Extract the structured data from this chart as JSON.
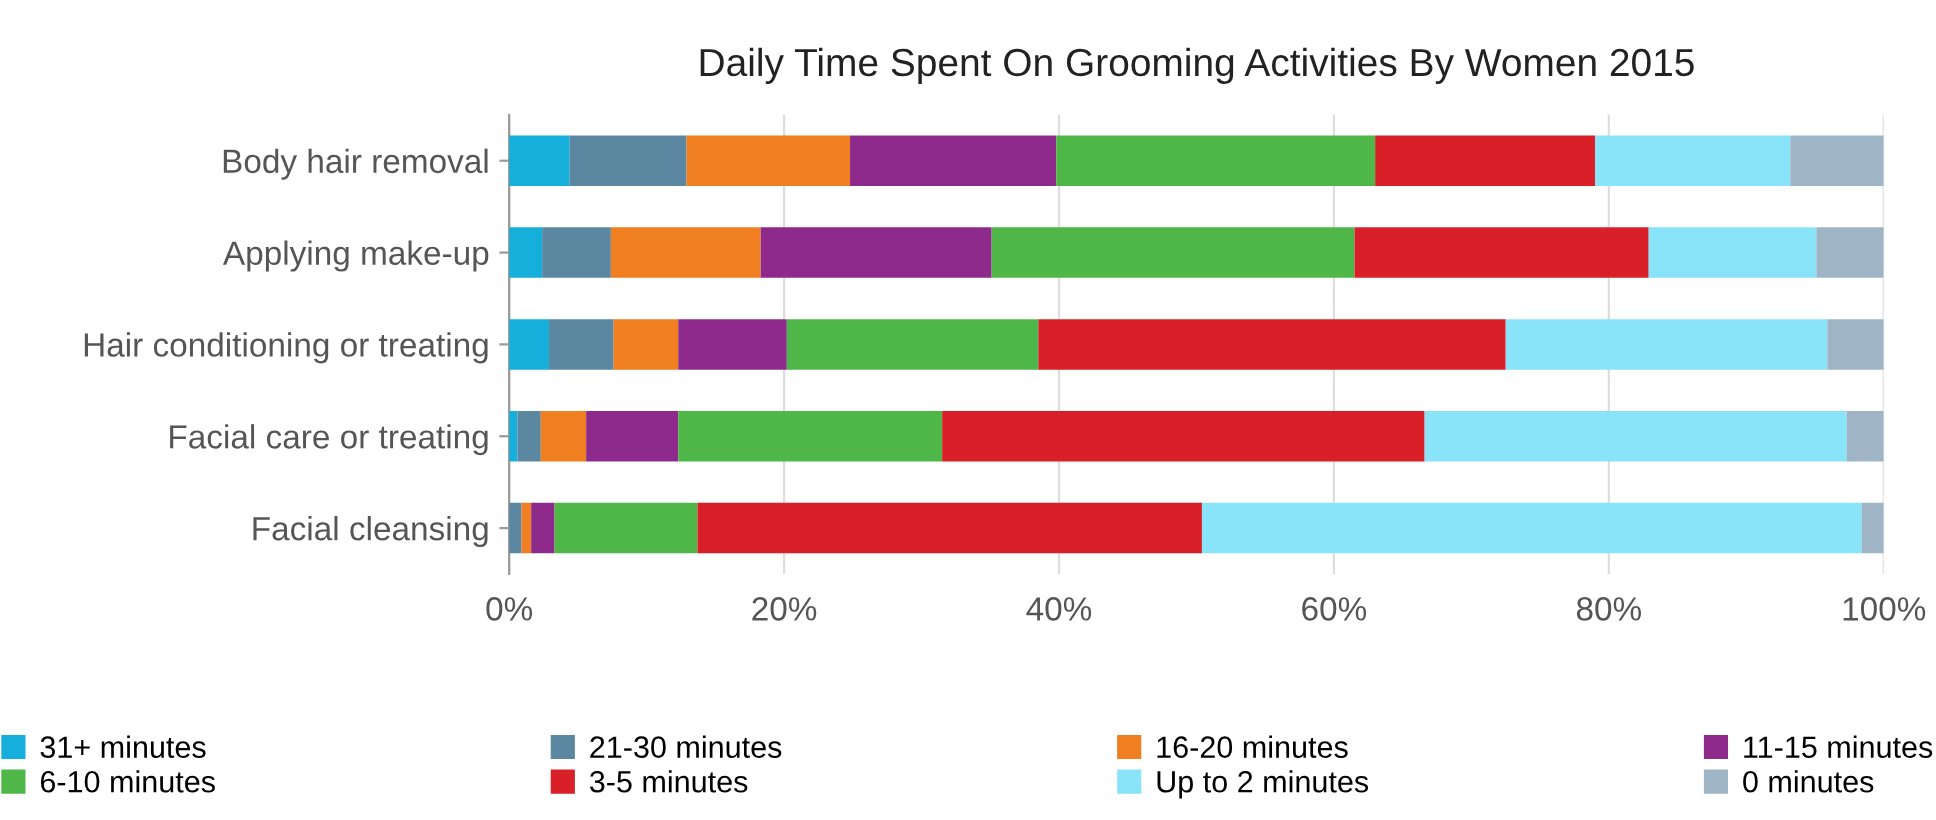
{
  "chart_data": {
    "type": "bar",
    "title": "Daily Time Spent On Grooming Activities By Women 2015",
    "orientation": "horizontal",
    "stacked": true,
    "categories": [
      "Body hair removal",
      "Applying make-up",
      "Hair conditioning or treating",
      "Facial care or treating",
      "Facial cleansing"
    ],
    "series": [
      {
        "name": "31+ minutes",
        "color": "#16aedb",
        "values": [
          4.4,
          2.4,
          2.9,
          0.6,
          0
        ]
      },
      {
        "name": "21-30 minutes",
        "color": "#5b87a0",
        "values": [
          8.5,
          5.0,
          4.7,
          1.7,
          0.9
        ]
      },
      {
        "name": "16-20 minutes",
        "color": "#f07f22",
        "values": [
          11.9,
          10.9,
          4.7,
          3.3,
          0.7
        ]
      },
      {
        "name": "11-15 minutes",
        "color": "#8e2a8b",
        "values": [
          15.0,
          16.8,
          7.9,
          6.7,
          1.7
        ]
      },
      {
        "name": "6-10 minutes",
        "color": "#4fb748",
        "values": [
          23.2,
          26.4,
          18.3,
          19.2,
          10.4
        ]
      },
      {
        "name": "3-5 minutes",
        "color": "#d91f27",
        "values": [
          16.0,
          21.4,
          34.0,
          35.1,
          36.7
        ]
      },
      {
        "name": "Up to 2 minutes",
        "color": "#89e4fa",
        "values": [
          14.2,
          12.2,
          23.4,
          30.7,
          48.0
        ]
      },
      {
        "name": "0 minutes",
        "color": "#9fb5c5",
        "values": [
          6.8,
          4.9,
          4.1,
          2.7,
          1.6
        ]
      }
    ],
    "xlim": [
      0,
      100
    ],
    "xticks": [
      {
        "value": 0,
        "label": "0%"
      },
      {
        "value": 20,
        "label": "20%"
      },
      {
        "value": 40,
        "label": "40%"
      },
      {
        "value": 60,
        "label": "60%"
      },
      {
        "value": 80,
        "label": "80%"
      },
      {
        "value": 100,
        "label": "100%"
      }
    ],
    "grid": "x",
    "legend": "bottom"
  }
}
